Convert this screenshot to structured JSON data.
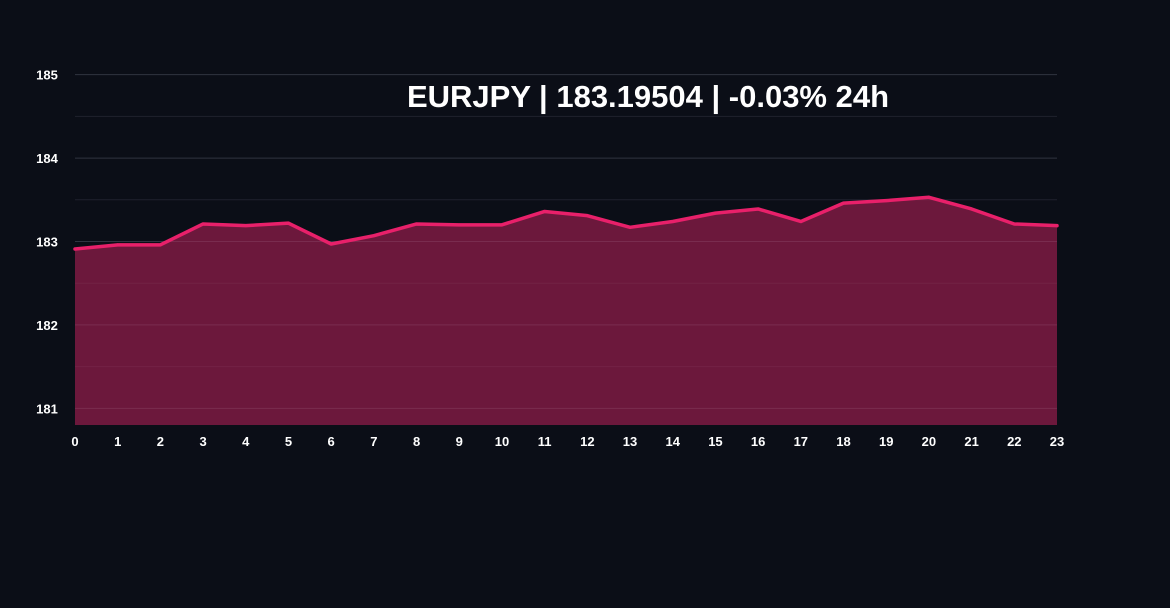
{
  "chart_data": {
    "type": "area",
    "title": "EURJPY | 183.19504 | -0.03% 24h",
    "xlabel": "",
    "ylabel": "",
    "x": [
      0,
      1,
      2,
      3,
      4,
      5,
      6,
      7,
      8,
      9,
      10,
      11,
      12,
      13,
      14,
      15,
      16,
      17,
      18,
      19,
      20,
      21,
      22,
      23
    ],
    "x_tick_labels": [
      "0",
      "1",
      "2",
      "3",
      "4",
      "5",
      "6",
      "7",
      "8",
      "9",
      "10",
      "11",
      "12",
      "13",
      "14",
      "15",
      "16",
      "17",
      "18",
      "19",
      "20",
      "21",
      "22",
      "23"
    ],
    "series": [
      {
        "values": [
          182.91,
          182.96,
          182.96,
          183.21,
          183.19,
          183.22,
          182.97,
          183.07,
          183.21,
          183.2,
          183.2,
          183.36,
          183.31,
          183.17,
          183.24,
          183.34,
          183.39,
          183.24,
          183.46,
          183.49,
          183.53,
          183.39,
          183.21,
          183.19
        ]
      }
    ],
    "ylim": [
      180.8,
      185.2
    ],
    "xlim": [
      0,
      23
    ],
    "y_ticks": [
      181,
      182,
      183,
      184,
      185
    ],
    "y_tick_labels": [
      "181",
      "182",
      "183",
      "184",
      "185"
    ],
    "grid": true,
    "legend": "none",
    "colors": {
      "background": "#0b0e17",
      "line": "#e8206a",
      "area_fill": "#7a1a42",
      "grid": "#1f2330"
    }
  }
}
